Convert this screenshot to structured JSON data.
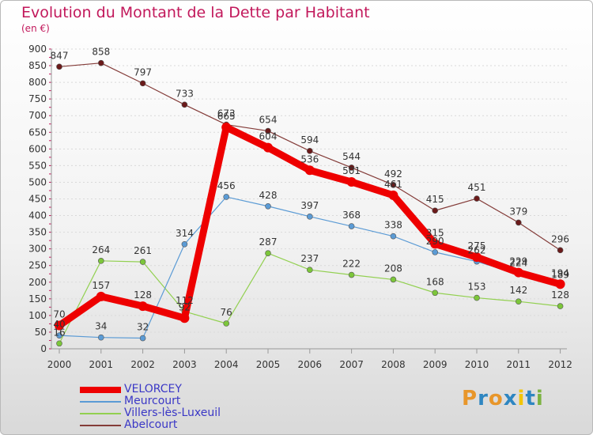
{
  "header": {
    "title": "Evolution du Montant de la Dette par Habitant",
    "unit": "(en €)"
  },
  "logo": {
    "text": "Proxiti",
    "colors": [
      "#e8962a",
      "#2e86c1",
      "#e8962a",
      "#2e86c1",
      "#f2c500",
      "#2e86c1",
      "#7cb342"
    ]
  },
  "colors": {
    "title": "#c2185b",
    "axis": "#555555",
    "grid": "#d9d9d9",
    "legend_text": "#3a37c6"
  },
  "chart_data": {
    "type": "line",
    "title": "Evolution du Montant de la Dette par Habitant",
    "subtitle": "(en €)",
    "x": [
      "2000",
      "2001",
      "2002",
      "2003",
      "2004",
      "2005",
      "2006",
      "2007",
      "2008",
      "2009",
      "2010",
      "2011",
      "2012"
    ],
    "ylim": [
      0,
      900
    ],
    "yticks": [
      0,
      50,
      100,
      150,
      200,
      250,
      300,
      350,
      400,
      450,
      500,
      550,
      600,
      650,
      700,
      750,
      800,
      850,
      900
    ],
    "grid": true,
    "legend_position": "bottom-left",
    "series": [
      {
        "name": "VELORCEY",
        "color": "#ee0000",
        "markerColor": "#ee0000",
        "values": [
          70,
          157,
          128,
          92,
          665,
          604,
          536,
          501,
          461,
          315,
          275,
          229,
          194
        ]
      },
      {
        "name": "Meurcourt",
        "color": "#5b9bd5",
        "markerColor": "#5b9bd5",
        "values": [
          40,
          34,
          32,
          314,
          456,
          428,
          397,
          368,
          338,
          290,
          262,
          224,
          189
        ]
      },
      {
        "name": "Villers-lès-Luxeuil",
        "color": "#92d050",
        "markerColor": "#7cc63a",
        "values": [
          16,
          264,
          261,
          112,
          76,
          287,
          237,
          222,
          208,
          168,
          153,
          142,
          128
        ]
      },
      {
        "name": "Abelcourt",
        "color": "#843c39",
        "markerColor": "#6b1a1a",
        "values": [
          847,
          858,
          797,
          733,
          673,
          654,
          594,
          544,
          492,
          415,
          451,
          379,
          296
        ]
      }
    ]
  }
}
